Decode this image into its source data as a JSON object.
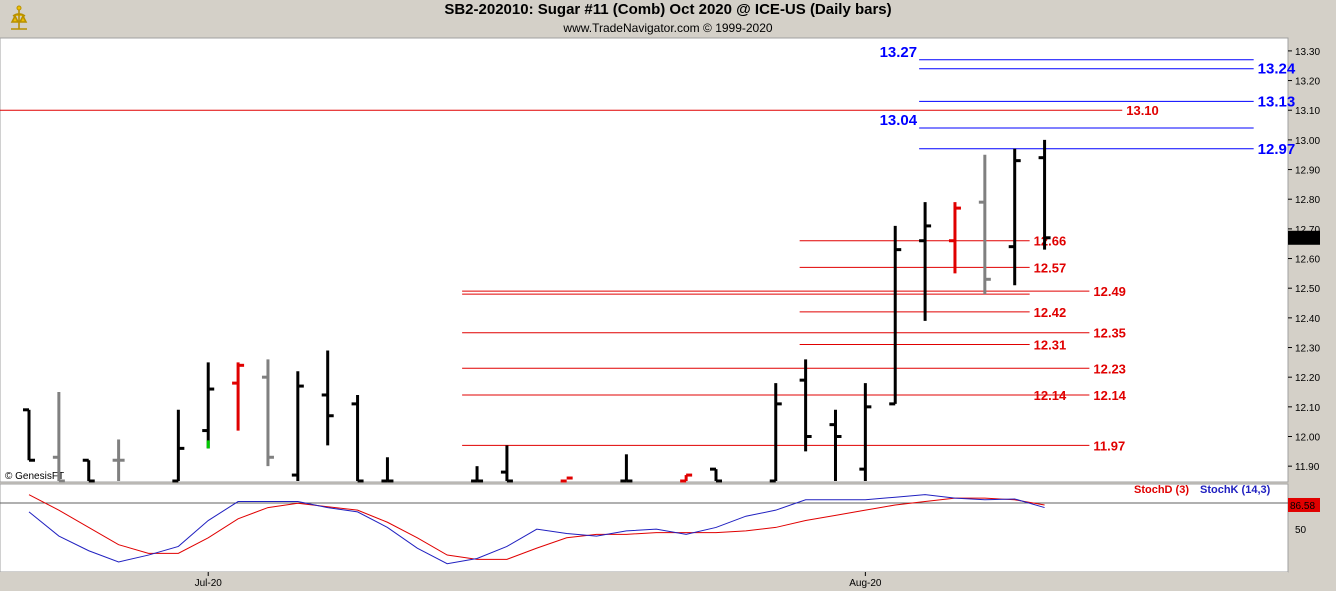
{
  "header": {
    "title": "SB2-202010:  Sugar #11 (Comb) Oct 2020 @ ICE-US  (Daily bars)",
    "subtitle": "www.TradeNavigator.com © 1999-2020",
    "watermark": "© GenesisFT"
  },
  "chart_data": [
    {
      "type": "ohlc",
      "ylim": [
        11.85,
        13.33
      ],
      "yticks": [
        11.9,
        12.0,
        12.1,
        12.2,
        12.3,
        12.4,
        12.5,
        12.6,
        12.7,
        12.8,
        12.9,
        13.0,
        13.1,
        13.2,
        13.3
      ],
      "ytick_labels": [
        "11.90",
        "12.00",
        "12.10",
        "12.20",
        "12.30",
        "12.40",
        "12.50",
        "12.60",
        "12.70",
        "12.80",
        "12.90",
        "13.00",
        "13.10",
        "13.20",
        "13.30"
      ],
      "last_price": "12.67",
      "xticks": [
        {
          "label": "Jul-20",
          "bar": 6
        },
        {
          "label": "Aug-20",
          "bar": 28
        }
      ],
      "colors": {
        "default": "#000000",
        "gray": "#808080",
        "red": "#e00000",
        "green": "#00cc00"
      },
      "bars": [
        {
          "o": 12.09,
          "h": 12.09,
          "l": 11.92,
          "c": 11.92,
          "color": "default"
        },
        {
          "o": 11.93,
          "h": 12.15,
          "l": 11.85,
          "c": 11.85,
          "color": "gray"
        },
        {
          "o": 11.92,
          "h": 11.92,
          "l": 11.85,
          "c": 11.85,
          "color": "default"
        },
        {
          "o": 11.92,
          "h": 11.99,
          "l": 11.85,
          "c": 11.92,
          "color": "gray"
        },
        {
          "o": 11.85,
          "h": 11.85,
          "l": 11.85,
          "c": 11.85,
          "color": "none"
        },
        {
          "o": 11.85,
          "h": 12.09,
          "l": 11.85,
          "c": 11.96,
          "color": "default"
        },
        {
          "o": 12.02,
          "h": 12.25,
          "l": 11.96,
          "c": 12.16,
          "color": "default",
          "low_color": "green"
        },
        {
          "o": 12.18,
          "h": 12.25,
          "l": 12.02,
          "c": 12.24,
          "color": "red"
        },
        {
          "o": 12.2,
          "h": 12.26,
          "l": 11.9,
          "c": 11.93,
          "color": "gray"
        },
        {
          "o": 11.87,
          "h": 12.22,
          "l": 11.85,
          "c": 12.17,
          "color": "default"
        },
        {
          "o": 12.14,
          "h": 12.29,
          "l": 11.97,
          "c": 12.07,
          "color": "default"
        },
        {
          "o": 12.11,
          "h": 12.14,
          "l": 11.85,
          "c": 11.85,
          "color": "default"
        },
        {
          "o": 11.85,
          "h": 11.93,
          "l": 11.85,
          "c": 11.85,
          "color": "default"
        },
        {
          "o": 11.85,
          "h": 11.85,
          "l": 11.85,
          "c": 11.85,
          "color": "none"
        },
        {
          "o": 11.85,
          "h": 11.85,
          "l": 11.85,
          "c": 11.85,
          "color": "none"
        },
        {
          "o": 11.85,
          "h": 11.9,
          "l": 11.85,
          "c": 11.85,
          "color": "default"
        },
        {
          "o": 11.88,
          "h": 11.97,
          "l": 11.85,
          "c": 11.85,
          "color": "default"
        },
        {
          "o": 11.85,
          "h": 11.85,
          "l": 11.85,
          "c": 11.85,
          "color": "none"
        },
        {
          "o": 11.85,
          "h": 11.85,
          "l": 11.85,
          "c": 11.86,
          "color": "red"
        },
        {
          "o": 11.85,
          "h": 11.85,
          "l": 11.85,
          "c": 11.85,
          "color": "none"
        },
        {
          "o": 11.85,
          "h": 11.94,
          "l": 11.85,
          "c": 11.85,
          "color": "default"
        },
        {
          "o": 11.85,
          "h": 11.85,
          "l": 11.85,
          "c": 11.85,
          "color": "none"
        },
        {
          "o": 11.85,
          "h": 11.87,
          "l": 11.85,
          "c": 11.87,
          "color": "red"
        },
        {
          "o": 11.89,
          "h": 11.89,
          "l": 11.85,
          "c": 11.85,
          "color": "default"
        },
        {
          "o": 11.85,
          "h": 11.85,
          "l": 11.85,
          "c": 11.85,
          "color": "none"
        },
        {
          "o": 11.85,
          "h": 12.18,
          "l": 11.85,
          "c": 12.11,
          "color": "default"
        },
        {
          "o": 12.19,
          "h": 12.26,
          "l": 11.95,
          "c": 12.0,
          "color": "default"
        },
        {
          "o": 12.04,
          "h": 12.09,
          "l": 11.85,
          "c": 12.0,
          "color": "default"
        },
        {
          "o": 11.89,
          "h": 12.18,
          "l": 11.85,
          "c": 12.1,
          "color": "default"
        },
        {
          "o": 12.11,
          "h": 12.71,
          "l": 12.11,
          "c": 12.63,
          "color": "default"
        },
        {
          "o": 12.66,
          "h": 12.79,
          "l": 12.39,
          "c": 12.71,
          "color": "default"
        },
        {
          "o": 12.66,
          "h": 12.79,
          "l": 12.55,
          "c": 12.77,
          "color": "red"
        },
        {
          "o": 12.79,
          "h": 12.95,
          "l": 12.48,
          "c": 12.53,
          "color": "gray"
        },
        {
          "o": 12.64,
          "h": 12.97,
          "l": 12.51,
          "c": 12.93,
          "color": "default"
        },
        {
          "o": 12.94,
          "h": 13.0,
          "l": 12.63,
          "c": 12.67,
          "color": "default"
        }
      ],
      "levels": [
        {
          "price": 13.27,
          "label": "13.27",
          "color": "#0000ff",
          "x1_bar": 29.8,
          "x2_bar": 41,
          "label_side": "left"
        },
        {
          "price": 13.24,
          "label": "13.24",
          "color": "#0000ff",
          "x1_bar": 29.8,
          "x2_bar": 41,
          "label_side": "right"
        },
        {
          "price": 13.13,
          "label": "13.13",
          "color": "#0000ff",
          "x1_bar": 29.8,
          "x2_bar": 41,
          "label_side": "right"
        },
        {
          "price": 13.04,
          "label": "13.04",
          "color": "#0000ff",
          "x1_bar": 29.8,
          "x2_bar": 41,
          "label_side": "left"
        },
        {
          "price": 12.97,
          "label": "12.97",
          "color": "#0000ff",
          "x1_bar": 29.8,
          "x2_bar": 41,
          "label_side": "right"
        },
        {
          "price": 13.1,
          "label": "13.10",
          "color": "#e00000",
          "x1_bar": -1.5,
          "x2_bar": 36.6,
          "label_side": "right"
        },
        {
          "price": 12.66,
          "label": "12.66",
          "color": "#e00000",
          "x1_bar": 25.8,
          "x2_bar": 33.5,
          "label_side": "right"
        },
        {
          "price": 12.57,
          "label": "12.57",
          "color": "#e00000",
          "x1_bar": 25.8,
          "x2_bar": 33.5,
          "label_side": "right"
        },
        {
          "price": 12.49,
          "label": "12.49",
          "color": "#e00000",
          "x1_bar": 14.5,
          "x2_bar": 35.5,
          "label_side": "right"
        },
        {
          "price": 12.48,
          "label": "12.48",
          "color": "#e00000",
          "x1_bar": 14.5,
          "x2_bar": 33.5,
          "label_side": "none"
        },
        {
          "price": 12.42,
          "label": "12.42",
          "color": "#e00000",
          "x1_bar": 25.8,
          "x2_bar": 33.5,
          "label_side": "right"
        },
        {
          "price": 12.35,
          "label": "12.35",
          "color": "#e00000",
          "x1_bar": 14.5,
          "x2_bar": 35.5,
          "label_side": "right"
        },
        {
          "price": 12.31,
          "label": "12.31",
          "color": "#e00000",
          "x1_bar": 25.8,
          "x2_bar": 33.5,
          "label_side": "right"
        },
        {
          "price": 12.23,
          "label": "12.23",
          "color": "#e00000",
          "x1_bar": 14.5,
          "x2_bar": 35.5,
          "label_side": "right"
        },
        {
          "price": 12.14,
          "label": "12.14",
          "color": "#e00000",
          "x1_bar": 25.8,
          "x2_bar": 33.5,
          "label_side": "right"
        },
        {
          "price": 12.14,
          "label": "12.14",
          "color": "#e00000",
          "x1_bar": 14.5,
          "x2_bar": 35.5,
          "label_side": "right"
        },
        {
          "price": 11.97,
          "label": "11.97",
          "color": "#e00000",
          "x1_bar": 14.5,
          "x2_bar": 35.5,
          "label_side": "right"
        }
      ]
    },
    {
      "type": "line",
      "ylim": [
        5,
        100
      ],
      "yticks": [
        50
      ],
      "ytick_labels": [
        "50"
      ],
      "last_value": "86.58",
      "series": [
        {
          "name": "StochD (3)",
          "color": "#e00000",
          "values": [
            90,
            72,
            52,
            32,
            22,
            22,
            40,
            62,
            75,
            80,
            76,
            72,
            58,
            40,
            20,
            15,
            15,
            28,
            40,
            44,
            44,
            46,
            46,
            46,
            48,
            52,
            60,
            66,
            72,
            78,
            82,
            86,
            86,
            84,
            78
          ]
        },
        {
          "name": "StochK (14,3)",
          "color": "#2020c0",
          "values": [
            70,
            42,
            25,
            12,
            20,
            30,
            60,
            82,
            82,
            82,
            75,
            70,
            52,
            28,
            10,
            16,
            30,
            50,
            45,
            42,
            48,
            50,
            44,
            52,
            65,
            72,
            84,
            84,
            84,
            87,
            90,
            86,
            84,
            85,
            75
          ]
        }
      ]
    }
  ]
}
